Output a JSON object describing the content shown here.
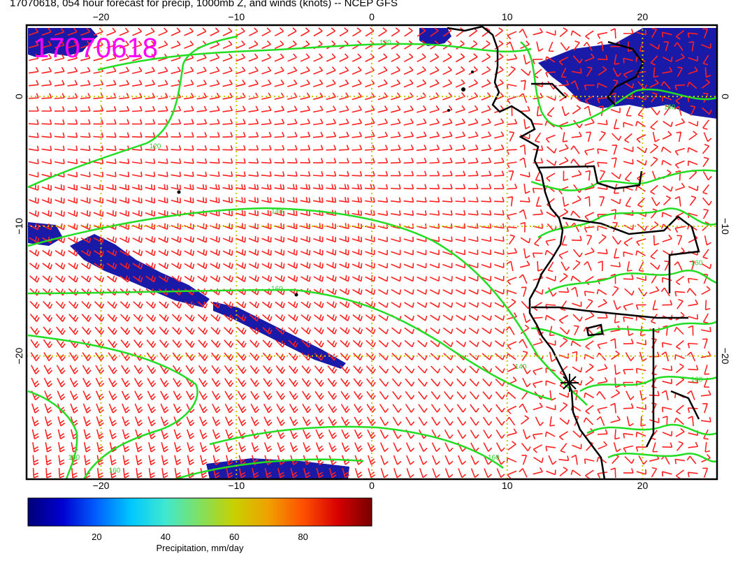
{
  "title": "17070618, 054 hour forecast for precip, 1000mb Z, and winds (knots) -- NCEP GFS",
  "stamp": "17070618",
  "map": {
    "lon_range": [
      -25.5,
      25.5
    ],
    "lat_range": [
      -29.5,
      5.5
    ],
    "lon_ticks": [
      {
        "value": -20,
        "label": "−20"
      },
      {
        "value": -10,
        "label": "−10"
      },
      {
        "value": 0,
        "label": "0"
      },
      {
        "value": 10,
        "label": "10"
      },
      {
        "value": 20,
        "label": "20"
      }
    ],
    "lat_ticks": [
      {
        "value": 0,
        "label": "0"
      },
      {
        "value": -10,
        "label": "−10"
      },
      {
        "value": -20,
        "label": "−20"
      }
    ],
    "contour_color": "#22dd22",
    "wind_color": "#ff2020",
    "grid_color": "#c8c800",
    "contour_labels": [
      {
        "text": "120",
        "lon": 1,
        "lat": 4
      },
      {
        "text": "120",
        "lon": -16,
        "lat": -4
      },
      {
        "text": "140",
        "lon": -7,
        "lat": -9
      },
      {
        "text": "160",
        "lon": -7,
        "lat": -15
      },
      {
        "text": "140",
        "lon": 11,
        "lat": -21
      },
      {
        "text": "160",
        "lon": -22,
        "lat": -28
      },
      {
        "text": "160",
        "lon": -19,
        "lat": -29
      },
      {
        "text": "160",
        "lon": 9,
        "lat": -28
      },
      {
        "text": "160",
        "lon": 22,
        "lat": -1
      },
      {
        "text": "160",
        "lon": 24,
        "lat": -13
      },
      {
        "text": "160",
        "lon": 24,
        "lat": -22
      }
    ]
  },
  "legend": {
    "title": "Precipitation, mm/day",
    "ticks": [
      "20",
      "40",
      "60",
      "80"
    ],
    "tick_values": [
      20,
      40,
      60,
      80
    ],
    "range": [
      0,
      100
    ],
    "colors": [
      "#00007a",
      "#0000d0",
      "#0060ff",
      "#00c8ff",
      "#40e8d0",
      "#80e060",
      "#c8d000",
      "#f0a000",
      "#ff5000",
      "#d80000",
      "#780000"
    ]
  }
}
